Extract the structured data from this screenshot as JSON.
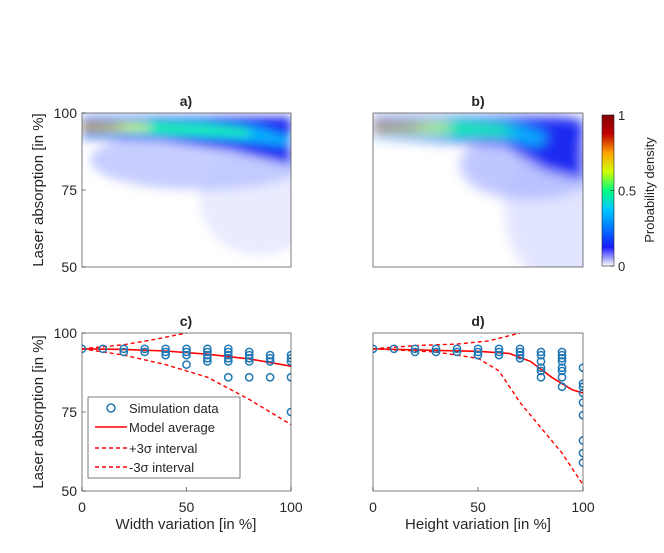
{
  "colorbar": {
    "label": "Probability density",
    "ticks": [
      {
        "value": 1,
        "label": "1"
      },
      {
        "value": 0.5,
        "label": "0.5"
      },
      {
        "value": 0,
        "label": "0"
      }
    ],
    "colors": [
      "#ffffff",
      "#1a1aff",
      "#0078ff",
      "#00c8ff",
      "#00ff80",
      "#d0ff00",
      "#ffa000",
      "#c00000",
      "#800000"
    ]
  },
  "chart_data": [
    {
      "id": "a",
      "type": "heatmap",
      "title": "a)",
      "ylabel": "Laser absorption [in %]",
      "xlabel": "",
      "xlim": [
        0,
        100
      ],
      "ylim": [
        50,
        100
      ],
      "yticks": [
        {
          "value": 50,
          "label": "50"
        },
        {
          "value": 75,
          "label": "75"
        },
        {
          "value": 100,
          "label": "100"
        }
      ],
      "ridge": [
        [
          0,
          94
        ],
        [
          30,
          94
        ],
        [
          60,
          92.5
        ],
        [
          100,
          89
        ]
      ]
    },
    {
      "id": "b",
      "type": "heatmap",
      "title": "b)",
      "ylabel": "",
      "xlabel": "",
      "xlim": [
        0,
        100
      ],
      "ylim": [
        50,
        100
      ],
      "yticks": [],
      "ridge": [
        [
          0,
          94
        ],
        [
          40,
          93.5
        ],
        [
          60,
          92
        ],
        [
          80,
          86
        ],
        [
          100,
          80
        ]
      ]
    },
    {
      "id": "c",
      "type": "scatter",
      "title": "c)",
      "ylabel": "Laser absorption [in %]",
      "xlabel": "Width variation [in %]",
      "xlim": [
        0,
        100
      ],
      "ylim": [
        50,
        100
      ],
      "xticks": [
        {
          "value": 0,
          "label": "0"
        },
        {
          "value": 50,
          "label": "50"
        },
        {
          "value": 100,
          "label": "100"
        }
      ],
      "yticks": [
        {
          "value": 50,
          "label": "50"
        },
        {
          "value": 75,
          "label": "75"
        },
        {
          "value": 100,
          "label": "100"
        }
      ],
      "legend": {
        "position": "bottom-left",
        "entries": [
          "Simulation data",
          "Model average",
          "+3σ interval",
          "-3σ interval"
        ]
      },
      "series": [
        {
          "name": "Simulation data",
          "kind": "scatter",
          "color": "#1f77b4",
          "points": [
            [
              0,
              95
            ],
            [
              10,
              95
            ],
            [
              20,
              95
            ],
            [
              20,
              94
            ],
            [
              30,
              95
            ],
            [
              30,
              94
            ],
            [
              40,
              95
            ],
            [
              40,
              94
            ],
            [
              40,
              93
            ],
            [
              50,
              95
            ],
            [
              50,
              94
            ],
            [
              50,
              93
            ],
            [
              50,
              90
            ],
            [
              60,
              95
            ],
            [
              60,
              94
            ],
            [
              60,
              93
            ],
            [
              60,
              92
            ],
            [
              60,
              91
            ],
            [
              70,
              95
            ],
            [
              70,
              94
            ],
            [
              70,
              93
            ],
            [
              70,
              92
            ],
            [
              70,
              91
            ],
            [
              70,
              86
            ],
            [
              80,
              94
            ],
            [
              80,
              93
            ],
            [
              80,
              92
            ],
            [
              80,
              91
            ],
            [
              80,
              86
            ],
            [
              90,
              93
            ],
            [
              90,
              92
            ],
            [
              90,
              91
            ],
            [
              90,
              86
            ],
            [
              100,
              93
            ],
            [
              100,
              92
            ],
            [
              100,
              91
            ],
            [
              100,
              86
            ],
            [
              100,
              75
            ]
          ]
        },
        {
          "name": "Model average",
          "kind": "line",
          "color": "#ff0000",
          "dash": "solid",
          "points": [
            [
              0,
              95
            ],
            [
              20,
              94.8
            ],
            [
              40,
              94.3
            ],
            [
              60,
              93.3
            ],
            [
              80,
              91.8
            ],
            [
              100,
              89.5
            ]
          ]
        },
        {
          "name": "+3σ interval",
          "kind": "line",
          "color": "#ff0000",
          "dash": "dashed",
          "points": [
            [
              0,
              95
            ],
            [
              20,
              96.3
            ],
            [
              35,
              98
            ],
            [
              50,
              100
            ]
          ]
        },
        {
          "name": "-3σ interval",
          "kind": "line",
          "color": "#ff0000",
          "dash": "dashed",
          "points": [
            [
              0,
              95
            ],
            [
              20,
              93
            ],
            [
              40,
              90
            ],
            [
              60,
              86
            ],
            [
              80,
              79
            ],
            [
              100,
              71
            ]
          ]
        }
      ]
    },
    {
      "id": "d",
      "type": "scatter",
      "title": "d)",
      "ylabel": "",
      "xlabel": "Height variation [in %]",
      "xlim": [
        0,
        100
      ],
      "ylim": [
        50,
        100
      ],
      "xticks": [
        {
          "value": 0,
          "label": "0"
        },
        {
          "value": 50,
          "label": "50"
        },
        {
          "value": 100,
          "label": "100"
        }
      ],
      "yticks": [],
      "series": [
        {
          "name": "Simulation data",
          "kind": "scatter",
          "color": "#1f77b4",
          "points": [
            [
              0,
              95
            ],
            [
              10,
              95
            ],
            [
              20,
              95
            ],
            [
              20,
              94
            ],
            [
              30,
              95
            ],
            [
              30,
              94
            ],
            [
              40,
              95
            ],
            [
              40,
              94
            ],
            [
              50,
              95
            ],
            [
              50,
              94
            ],
            [
              50,
              93
            ],
            [
              60,
              95
            ],
            [
              60,
              94
            ],
            [
              60,
              93
            ],
            [
              70,
              95
            ],
            [
              70,
              94
            ],
            [
              70,
              93
            ],
            [
              70,
              92
            ],
            [
              80,
              94
            ],
            [
              80,
              93
            ],
            [
              80,
              91
            ],
            [
              80,
              89
            ],
            [
              80,
              88
            ],
            [
              80,
              86
            ],
            [
              90,
              94
            ],
            [
              90,
              93
            ],
            [
              90,
              92
            ],
            [
              90,
              91
            ],
            [
              90,
              89
            ],
            [
              90,
              88
            ],
            [
              90,
              86
            ],
            [
              90,
              83
            ],
            [
              100,
              89
            ],
            [
              100,
              84
            ],
            [
              100,
              83
            ],
            [
              100,
              81
            ],
            [
              100,
              78
            ],
            [
              100,
              74
            ],
            [
              100,
              66
            ],
            [
              100,
              62
            ],
            [
              100,
              59
            ]
          ]
        },
        {
          "name": "Model average",
          "kind": "line",
          "color": "#ff0000",
          "dash": "solid",
          "points": [
            [
              0,
              95
            ],
            [
              30,
              94.5
            ],
            [
              50,
              94.2
            ],
            [
              65,
              93.5
            ],
            [
              75,
              91
            ],
            [
              85,
              86
            ],
            [
              95,
              82
            ],
            [
              100,
              81
            ]
          ]
        },
        {
          "name": "+3σ interval",
          "kind": "line",
          "color": "#ff0000",
          "dash": "dashed",
          "points": [
            [
              0,
              95
            ],
            [
              20,
              96
            ],
            [
              40,
              96.5
            ],
            [
              55,
              97.5
            ],
            [
              70,
              100
            ]
          ]
        },
        {
          "name": "-3σ interval",
          "kind": "line",
          "color": "#ff0000",
          "dash": "dashed",
          "points": [
            [
              0,
              95
            ],
            [
              30,
              94
            ],
            [
              50,
              92
            ],
            [
              60,
              88
            ],
            [
              70,
              78
            ],
            [
              80,
              70
            ],
            [
              90,
              62
            ],
            [
              100,
              52
            ]
          ]
        }
      ]
    }
  ]
}
